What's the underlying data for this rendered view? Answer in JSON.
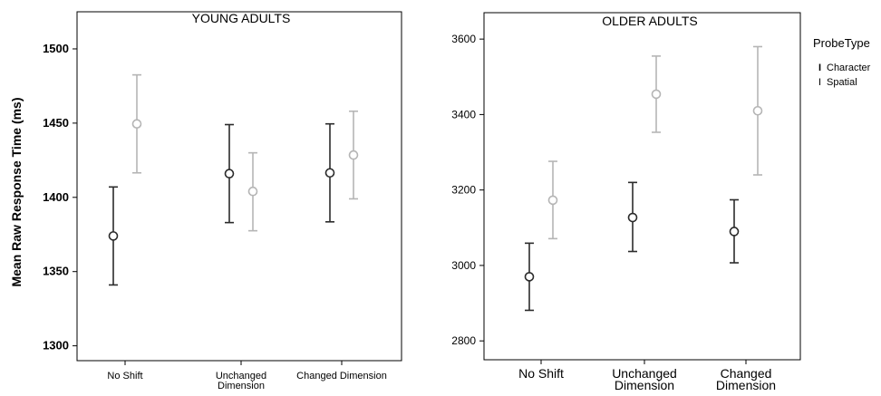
{
  "figure": {
    "ylabel": "Mean Raw Response Time (ms)",
    "legend": {
      "title": "ProbeType",
      "items": [
        "Character",
        "Spatial"
      ],
      "placement": "right"
    },
    "colors": {
      "Character": "#2b2b2b",
      "Spatial": "#b5b5b5"
    }
  },
  "chart_data": [
    {
      "type": "errorbar",
      "title": "YOUNG ADULTS",
      "categories": [
        "No Shift",
        "Unchanged Dimension",
        "Changed Dimension"
      ],
      "category_label_lines": [
        [
          "No Shift"
        ],
        [
          "Unchanged",
          "Dimension"
        ],
        [
          "Changed Dimension"
        ]
      ],
      "ylim": [
        1290,
        1525
      ],
      "yticks": [
        1300,
        1350,
        1400,
        1450,
        1500
      ],
      "series": [
        {
          "name": "Character",
          "mean": [
            1374,
            1416,
            1416.5
          ],
          "lower": [
            1341,
            1383,
            1383.5
          ],
          "upper": [
            1407,
            1449,
            1449.5
          ]
        },
        {
          "name": "Spatial",
          "mean": [
            1449.5,
            1404,
            1428.5
          ],
          "lower": [
            1416.5,
            1377.5,
            1399
          ],
          "upper": [
            1482.5,
            1430,
            1458
          ]
        }
      ]
    },
    {
      "type": "errorbar",
      "title": "OLDER ADULTS",
      "categories": [
        "No Shift",
        "Unchanged Dimension",
        "Changed Dimension"
      ],
      "category_label_lines": [
        [
          "No Shift"
        ],
        [
          "Unchanged",
          "Dimension"
        ],
        [
          "Changed",
          "Dimension"
        ]
      ],
      "ylim": [
        2750,
        3670
      ],
      "yticks": [
        2800,
        3000,
        3200,
        3400,
        3600
      ],
      "series": [
        {
          "name": "Character",
          "mean": [
            2970,
            3127,
            3090
          ],
          "lower": [
            2881,
            3037,
            3007
          ],
          "upper": [
            3059,
            3220,
            3174
          ]
        },
        {
          "name": "Spatial",
          "mean": [
            3173,
            3454,
            3410
          ],
          "lower": [
            3071,
            3353,
            3240
          ],
          "upper": [
            3276,
            3555,
            3580
          ]
        }
      ]
    }
  ]
}
